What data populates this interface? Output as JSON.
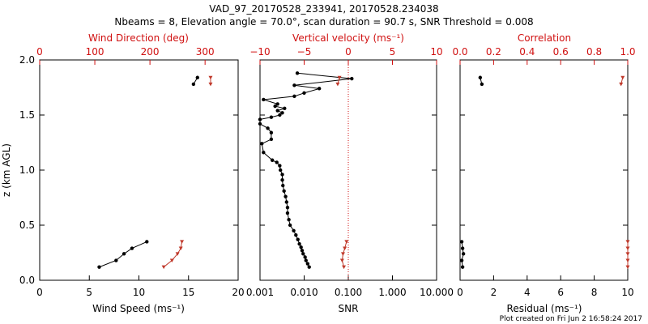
{
  "figure": {
    "title_line1": "VAD_97_20170528_233941, 20170528.234038",
    "title_line2": "Nbeams = 8, Elevation angle = 70.0°, scan duration = 90.7 s, SNR Threshold = 0.008",
    "footer": "Plot created on Fri Jun  2 16:58:24 2017"
  },
  "chart_data": [
    {
      "type": "line",
      "xlabel": "Wind Speed (ms⁻¹)",
      "ylabel": "z (km AGL)",
      "x2label": "Wind Direction (deg)",
      "xlim": [
        0,
        20
      ],
      "x2lim": [
        0,
        360
      ],
      "ylim": [
        0,
        2
      ],
      "x_ticks": [
        "0",
        "5",
        "10",
        "15",
        "20"
      ],
      "x2_ticks": [
        "0",
        "100",
        "200",
        "300"
      ],
      "y_ticks": [
        "0.0",
        "0.5",
        "1.0",
        "1.5",
        "2.0"
      ],
      "colors": {
        "primary": "#000000",
        "secondary": "#c0392b"
      },
      "series": [
        {
          "axis": "x",
          "x": [
            6.0,
            7.7,
            8.5,
            9.3,
            10.8
          ],
          "z": [
            0.12,
            0.18,
            0.24,
            0.29,
            0.35
          ]
        },
        {
          "axis": "x",
          "x": [
            15.5,
            15.9
          ],
          "z": [
            1.78,
            1.84
          ]
        },
        {
          "axis": "x2",
          "x": [
            225,
            240,
            250,
            256,
            258
          ],
          "z": [
            0.12,
            0.18,
            0.24,
            0.29,
            0.35
          ]
        },
        {
          "axis": "x2",
          "x": [
            310,
            310
          ],
          "z": [
            1.78,
            1.84
          ]
        }
      ]
    },
    {
      "type": "line",
      "xlabel": "SNR",
      "x2label": "Vertical velocity (ms⁻¹)",
      "xscale": "log",
      "xlim": [
        0.001,
        10
      ],
      "x2lim": [
        -10,
        10
      ],
      "ylim": [
        0,
        2
      ],
      "x_ticks": [
        "0.001",
        "0.010",
        "0.100",
        "1.000",
        "10.000"
      ],
      "x2_ticks": [
        "−10",
        "−5",
        "0",
        "5",
        "10"
      ],
      "colors": {
        "primary": "#000000",
        "secondary": "#c0392b",
        "reference_line": "#d01010"
      },
      "reference_line_snr": 0.1,
      "series": [
        {
          "axis": "x",
          "x": [
            0.013,
            0.012,
            0.011,
            0.0105,
            0.0095,
            0.009,
            0.0085,
            0.0078,
            0.0072,
            0.0065,
            0.0058,
            0.0048,
            0.0045,
            0.0042,
            0.0042,
            0.004,
            0.0038,
            0.0035,
            0.0033,
            0.0032,
            0.0032,
            0.0029,
            0.0028,
            0.0024,
            0.0019,
            0.0012,
            0.0011,
            0.0018,
            0.0018,
            0.0015,
            0.001,
            0.001,
            0.0018,
            0.0028,
            0.0032,
            0.0025,
            0.0036,
            0.0022,
            0.0025,
            0.0012,
            0.006,
            0.01,
            0.022,
            0.006,
            0.12,
            0.007
          ],
          "z": [
            0.12,
            0.15,
            0.18,
            0.21,
            0.24,
            0.27,
            0.3,
            0.33,
            0.37,
            0.41,
            0.45,
            0.5,
            0.55,
            0.61,
            0.66,
            0.71,
            0.76,
            0.81,
            0.86,
            0.91,
            0.96,
            1.0,
            1.04,
            1.07,
            1.09,
            1.16,
            1.24,
            1.28,
            1.34,
            1.38,
            1.42,
            1.46,
            1.48,
            1.5,
            1.52,
            1.54,
            1.56,
            1.58,
            1.6,
            1.64,
            1.67,
            1.7,
            1.74,
            1.77,
            1.83,
            1.88
          ]
        },
        {
          "axis": "x2",
          "x": [
            -0.5,
            -0.7,
            -0.6,
            -0.4,
            -0.2
          ],
          "z": [
            0.12,
            0.18,
            0.24,
            0.29,
            0.35
          ]
        },
        {
          "axis": "x2",
          "x": [
            -1.2,
            -1.0
          ],
          "z": [
            1.78,
            1.84
          ]
        }
      ]
    },
    {
      "type": "line",
      "xlabel": "Residual (ms⁻¹)",
      "x2label": "Correlation",
      "xlim": [
        0,
        10
      ],
      "x2lim": [
        0,
        1
      ],
      "ylim": [
        0,
        2
      ],
      "x_ticks": [
        "0",
        "2",
        "4",
        "6",
        "8",
        "10"
      ],
      "x2_ticks": [
        "0.0",
        "0.2",
        "0.4",
        "0.6",
        "0.8",
        "1.0"
      ],
      "colors": {
        "primary": "#000000",
        "secondary": "#c0392b"
      },
      "series": [
        {
          "axis": "x",
          "x": [
            0.15,
            0.1,
            0.2,
            0.15,
            0.1
          ],
          "z": [
            0.12,
            0.18,
            0.24,
            0.29,
            0.35
          ]
        },
        {
          "axis": "x",
          "x": [
            1.3,
            1.2
          ],
          "z": [
            1.78,
            1.84
          ]
        },
        {
          "axis": "x2",
          "x": [
            1.0,
            1.0,
            1.0,
            1.0,
            1.0
          ],
          "z": [
            0.12,
            0.18,
            0.24,
            0.29,
            0.35
          ]
        },
        {
          "axis": "x2",
          "x": [
            0.96,
            0.97
          ],
          "z": [
            1.78,
            1.84
          ]
        }
      ]
    }
  ]
}
